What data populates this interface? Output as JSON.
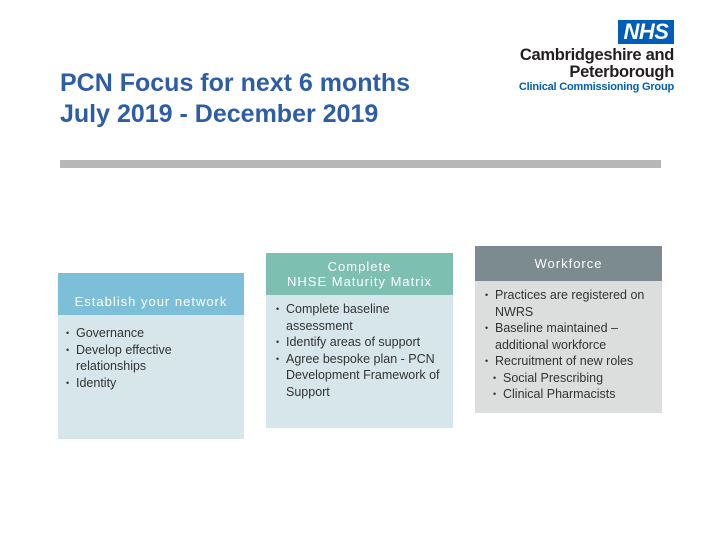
{
  "slide": {
    "title_line1": "PCN Focus for next 6 months",
    "title_line2": "July 2019 - December 2019"
  },
  "logo": {
    "nhs": "NHS",
    "line1": "Cambridgeshire and",
    "line2": "Peterborough",
    "line3": "Clinical Commissioning Group",
    "brand_color": "#005eb8"
  },
  "boxes": [
    {
      "heading": "Establish your network",
      "header_color": "#7dbfd8",
      "items": [
        "Governance",
        "Develop effective relationships",
        "Identity"
      ]
    },
    {
      "heading_line1": "Complete",
      "heading_line2": "NHSE Maturity Matrix",
      "header_color": "#7dbfb0",
      "items": [
        "Complete baseline assessment",
        "Identify areas of support",
        "Agree bespoke plan - PCN Development Framework of Support"
      ]
    },
    {
      "heading": "Workforce",
      "header_color": "#7b8b90",
      "items": [
        "Practices are registered on NWRS",
        "Baseline maintained – additional workforce",
        "Recruitment of new roles"
      ],
      "sub_items": [
        "Social Prescribing",
        "Clinical Pharmacists"
      ]
    }
  ]
}
